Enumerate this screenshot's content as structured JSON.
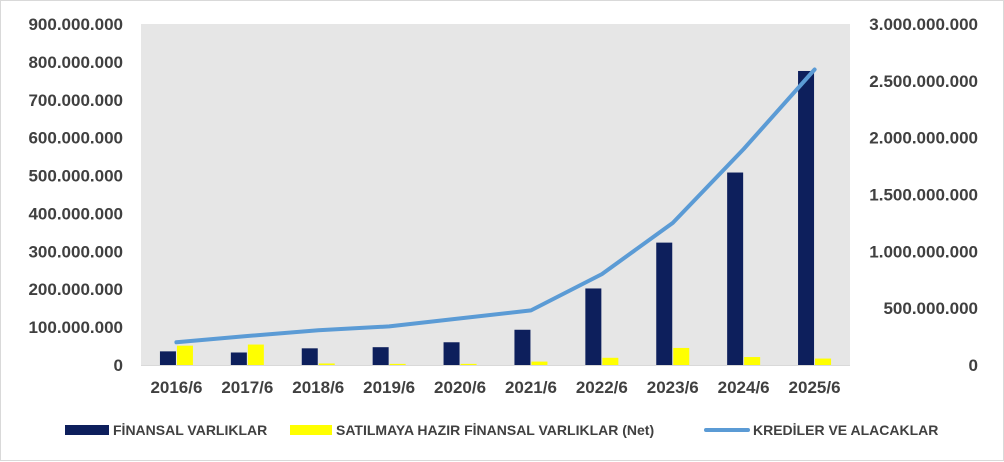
{
  "chart_data": {
    "type": "bar",
    "categories": [
      "2016/6",
      "2017/6",
      "2018/6",
      "2019/6",
      "2020/6",
      "2021/6",
      "2022/6",
      "2023/6",
      "2024/6",
      "2025/6"
    ],
    "series": [
      {
        "name": "FİNANSAL VARLIKLAR",
        "type": "bar",
        "axis": "left",
        "color": "#0d1f5c",
        "values": [
          36000000,
          33000000,
          44000000,
          47000000,
          60000000,
          93000000,
          202000000,
          323000000,
          508000000,
          776000000
        ]
      },
      {
        "name": "SATILMAYA HAZIR FİNANSAL VARLIKLAR (Net)",
        "type": "bar",
        "axis": "left",
        "color": "#ffff00",
        "values": [
          51000000,
          54000000,
          4000000,
          3000000,
          3000000,
          9000000,
          19000000,
          45000000,
          21000000,
          17000000
        ]
      },
      {
        "name": "KREDİLER VE ALACAKLAR",
        "type": "line",
        "axis": "right",
        "color": "#5b9bd5",
        "values": [
          200000000,
          255000000,
          305000000,
          340000000,
          410000000,
          480000000,
          800000000,
          1250000000,
          1900000000,
          2600000000
        ]
      }
    ],
    "y_left": {
      "ylim": [
        0,
        900000000
      ],
      "ticks": [
        0,
        100000000,
        200000000,
        300000000,
        400000000,
        500000000,
        600000000,
        700000000,
        800000000,
        900000000
      ],
      "tick_labels": [
        "0",
        "100.000.000",
        "200.000.000",
        "300.000.000",
        "400.000.000",
        "500.000.000",
        "600.000.000",
        "700.000.000",
        "800.000.000",
        "900.000.000"
      ]
    },
    "y_right": {
      "ylim": [
        0,
        3000000000
      ],
      "ticks": [
        0,
        500000000,
        1000000000,
        1500000000,
        2000000000,
        2500000000,
        3000000000
      ],
      "tick_labels": [
        "0",
        "500.000.000",
        "1.000.000.000",
        "1.500.000.000",
        "2.000.000.000",
        "2.500.000.000",
        "3.000.000.000"
      ]
    },
    "title": "",
    "xlabel": "",
    "ylabel": "",
    "grid": false,
    "legend_position": "bottom",
    "plot_background": "#e6e6e6"
  }
}
